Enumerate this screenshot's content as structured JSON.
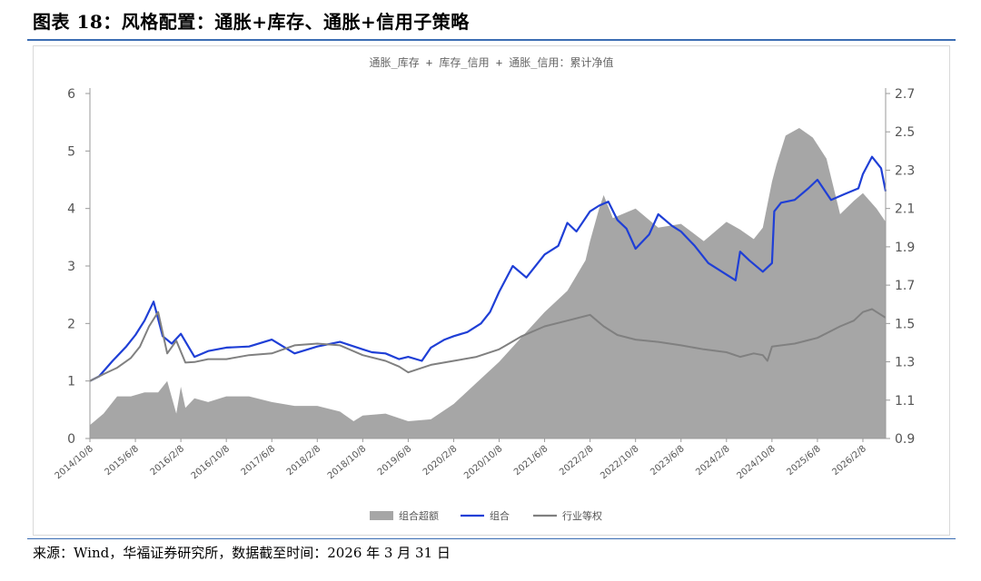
{
  "figure_title": "图表 18：风格配置：通胀+库存、通胀+信用子策略",
  "source_note": "来源：Wind，华福证券研究所，数据截至时间：2026 年 3 月 31 日",
  "colors": {
    "excess": "#a6a6a6",
    "portfolio": "#1f3fd6",
    "industry": "#808080",
    "rule": "#3b6db3"
  },
  "chart_data": {
    "type": "line",
    "title": "通胀_库存 + 库存_信用 + 通胀_信用：累计净值",
    "x_tick_labels": [
      "2014/10/8",
      "2015/6/8",
      "2016/2/8",
      "2016/10/8",
      "2017/6/8",
      "2018/2/8",
      "2018/10/8",
      "2019/6/8",
      "2020/2/8",
      "2020/10/8",
      "2021/6/8",
      "2022/2/8",
      "2022/10/8",
      "2023/6/8",
      "2024/2/8",
      "2024/10/8",
      "2025/6/8",
      "2026/2/8"
    ],
    "left_axis": {
      "ylim": [
        0,
        6
      ],
      "ticks": [
        "0",
        "1",
        "2",
        "3",
        "4",
        "5",
        "6"
      ]
    },
    "right_axis": {
      "ylim": [
        0.9,
        2.7
      ],
      "ticks": [
        "0.9",
        "1.1",
        "1.3",
        "1.5",
        "1.7",
        "1.9",
        "2.1",
        "2.3",
        "2.5",
        "2.7"
      ]
    },
    "legend": [
      "组合超额",
      "组合",
      "行业等权"
    ],
    "legend_position": "bottom",
    "series": [
      {
        "name": "组合超额",
        "kind": "area",
        "axis": "right",
        "x": [
          0,
          0.3,
          0.6,
          0.9,
          1.2,
          1.5,
          1.7,
          1.9,
          2.0,
          2.1,
          2.3,
          2.6,
          3,
          3.5,
          4,
          4.5,
          5,
          5.5,
          5.8,
          6,
          6.5,
          7,
          7.5,
          8,
          8.5,
          9,
          9.5,
          10,
          10.5,
          10.7,
          10.9,
          11,
          11.2,
          11.3,
          11.5,
          12,
          12.5,
          13,
          13.5,
          14,
          14.3,
          14.6,
          14.8,
          15,
          15.1,
          15.3,
          15.6,
          15.9,
          16.2,
          16.5,
          16.8,
          17,
          17.3,
          17.5
        ],
        "y": [
          0.97,
          1.03,
          1.12,
          1.12,
          1.14,
          1.14,
          1.2,
          1.03,
          1.17,
          1.06,
          1.11,
          1.09,
          1.12,
          1.12,
          1.09,
          1.07,
          1.07,
          1.04,
          0.99,
          1.02,
          1.03,
          0.99,
          1.0,
          1.08,
          1.19,
          1.3,
          1.43,
          1.56,
          1.67,
          1.75,
          1.83,
          1.93,
          2.1,
          2.17,
          2.05,
          2.1,
          2.0,
          2.02,
          1.93,
          2.03,
          1.99,
          1.94,
          2.0,
          2.24,
          2.33,
          2.48,
          2.52,
          2.47,
          2.36,
          2.07,
          2.14,
          2.18,
          2.1,
          2.03
        ]
      },
      {
        "name": "组合",
        "kind": "line",
        "axis": "left",
        "x": [
          0,
          0.2,
          0.5,
          0.8,
          1,
          1.2,
          1.4,
          1.6,
          1.8,
          2,
          2.3,
          2.6,
          3,
          3.5,
          4,
          4.5,
          5,
          5.5,
          6,
          6.2,
          6.5,
          6.8,
          7,
          7.3,
          7.5,
          7.8,
          8,
          8.3,
          8.6,
          8.8,
          9,
          9.3,
          9.6,
          10,
          10.3,
          10.5,
          10.7,
          11,
          11.2,
          11.4,
          11.6,
          11.8,
          12,
          12.3,
          12.5,
          12.8,
          13,
          13.3,
          13.6,
          13.9,
          14.2,
          14.3,
          14.5,
          14.8,
          15,
          15.05,
          15.2,
          15.5,
          15.8,
          16,
          16.3,
          16.6,
          16.9,
          17,
          17.2,
          17.4,
          17.5
        ],
        "y": [
          1.0,
          1.08,
          1.35,
          1.6,
          1.8,
          2.05,
          2.38,
          1.78,
          1.65,
          1.82,
          1.42,
          1.52,
          1.58,
          1.6,
          1.72,
          1.48,
          1.6,
          1.68,
          1.55,
          1.5,
          1.48,
          1.38,
          1.42,
          1.35,
          1.58,
          1.72,
          1.78,
          1.85,
          2.0,
          2.2,
          2.55,
          3.0,
          2.8,
          3.2,
          3.35,
          3.75,
          3.6,
          3.95,
          4.05,
          4.12,
          3.8,
          3.65,
          3.3,
          3.55,
          3.9,
          3.7,
          3.6,
          3.35,
          3.05,
          2.9,
          2.75,
          3.25,
          3.1,
          2.9,
          3.05,
          3.95,
          4.1,
          4.15,
          4.35,
          4.5,
          4.15,
          4.25,
          4.35,
          4.6,
          4.9,
          4.7,
          4.3
        ]
      },
      {
        "name": "行业等权",
        "kind": "line",
        "axis": "left",
        "x": [
          0,
          0.3,
          0.6,
          0.9,
          1.1,
          1.3,
          1.5,
          1.7,
          1.9,
          2.1,
          2.3,
          2.6,
          3,
          3.5,
          4,
          4.5,
          5,
          5.5,
          6,
          6.5,
          6.8,
          7,
          7.5,
          8,
          8.5,
          9,
          9.5,
          10,
          10.5,
          11,
          11.3,
          11.6,
          12,
          12.5,
          13,
          13.5,
          14,
          14.3,
          14.6,
          14.8,
          14.9,
          15,
          15.5,
          16,
          16.5,
          16.8,
          17,
          17.2,
          17.4,
          17.5
        ],
        "y": [
          1.0,
          1.12,
          1.23,
          1.4,
          1.6,
          1.95,
          2.2,
          1.48,
          1.7,
          1.32,
          1.33,
          1.38,
          1.38,
          1.45,
          1.48,
          1.62,
          1.65,
          1.62,
          1.45,
          1.35,
          1.25,
          1.15,
          1.28,
          1.35,
          1.42,
          1.55,
          1.78,
          1.95,
          2.05,
          2.15,
          1.95,
          1.8,
          1.72,
          1.68,
          1.62,
          1.55,
          1.5,
          1.42,
          1.48,
          1.45,
          1.35,
          1.6,
          1.65,
          1.75,
          1.95,
          2.05,
          2.2,
          2.25,
          2.15,
          2.1
        ]
      }
    ]
  }
}
